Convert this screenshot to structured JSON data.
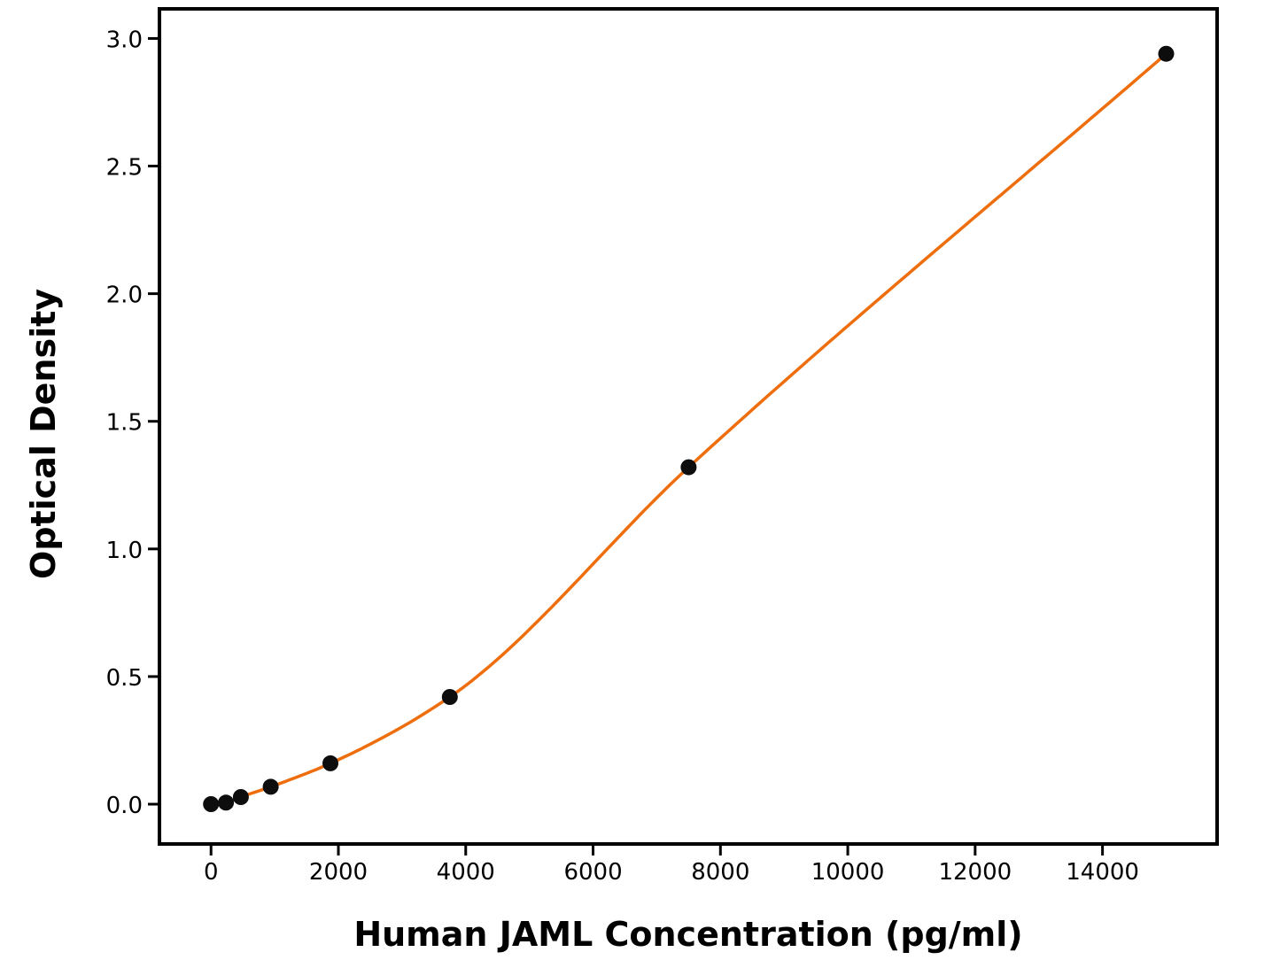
{
  "figure": {
    "background": "#ffffff"
  },
  "chart_data": {
    "type": "scatter",
    "title": "",
    "xlabel": "Human JAML Concentration (pg/ml)",
    "ylabel": "Optical Density",
    "grid": false,
    "legend": null,
    "fit_line": true,
    "points": {
      "x": [
        0,
        234.375,
        468.75,
        937.5,
        1875,
        3750,
        7500,
        15000
      ],
      "y": [
        0.0,
        0.006,
        0.028,
        0.068,
        0.16,
        0.42,
        1.32,
        2.94
      ]
    },
    "x_ticks": {
      "values": [
        0,
        2000,
        4000,
        6000,
        8000,
        10000,
        12000,
        14000
      ],
      "labels": [
        "0",
        "2000",
        "4000",
        "6000",
        "8000",
        "10000",
        "12000",
        "14000"
      ]
    },
    "y_ticks": {
      "values": [
        0.0,
        0.5,
        1.0,
        1.5,
        2.0,
        2.5,
        3.0
      ],
      "labels": [
        "0.0",
        "0.5",
        "1.0",
        "1.5",
        "2.0",
        "2.5",
        "3.0"
      ]
    },
    "xlim": [
      -810,
      15800
    ],
    "ylim": [
      -0.156,
      3.116
    ],
    "colors": {
      "curve": "#ee6e0e",
      "marker": "#0d0d0d",
      "axis": "#000000",
      "text": "#000000"
    }
  }
}
